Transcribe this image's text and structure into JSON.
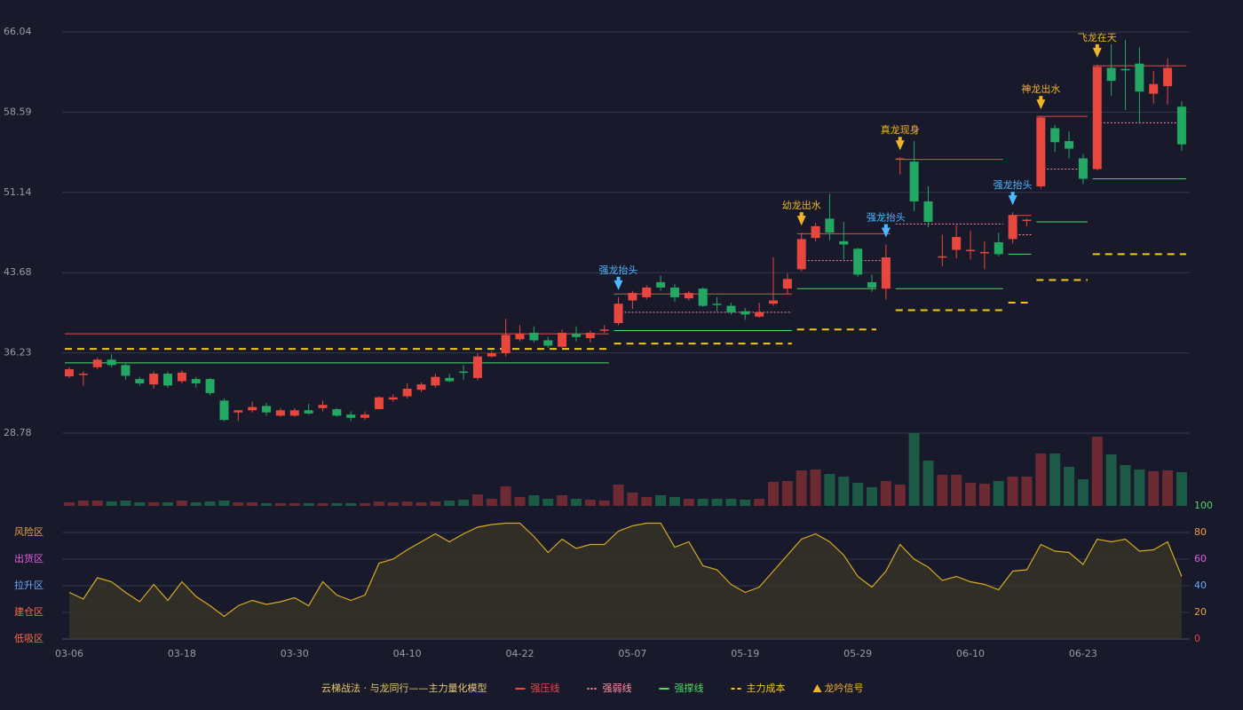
{
  "chart_data": [
    {
      "type": "candlestick",
      "categories": [
        "03-06",
        null,
        null,
        null,
        null,
        null,
        null,
        null,
        "03-18",
        null,
        null,
        null,
        null,
        null,
        null,
        null,
        "03-30",
        null,
        null,
        null,
        null,
        null,
        null,
        null,
        "04-10",
        null,
        null,
        null,
        null,
        null,
        null,
        null,
        "04-22",
        null,
        null,
        null,
        null,
        null,
        null,
        null,
        "05-07",
        null,
        null,
        null,
        null,
        null,
        null,
        null,
        "05-19",
        null,
        null,
        null,
        null,
        null,
        null,
        null,
        "05-29",
        null,
        null,
        null,
        null,
        null,
        null,
        null,
        "06-10",
        null,
        null,
        null,
        null,
        null,
        null,
        null,
        "06-23",
        null,
        null,
        null,
        null,
        null,
        null,
        null
      ],
      "open": [
        34.05,
        34.2,
        34.9,
        35.6,
        35.1,
        33.8,
        33.3,
        34.3,
        33.6,
        33.8,
        33.8,
        31.8,
        30.7,
        30.9,
        31.3,
        30.4,
        30.4,
        30.9,
        31.1,
        31.0,
        30.5,
        30.2,
        31.0,
        31.9,
        32.2,
        32.8,
        33.2,
        33.9,
        34.5,
        33.9,
        35.9,
        36.2,
        37.5,
        38.1,
        37.4,
        36.8,
        38.0,
        37.6,
        38.3,
        39.0,
        41.1,
        41.4,
        42.8,
        42.3,
        41.3,
        42.2,
        40.8,
        40.6,
        40.1,
        39.6,
        40.8,
        42.2,
        44.0,
        46.9,
        48.7,
        46.6,
        45.9,
        42.8,
        42.2,
        54.2,
        54.0,
        50.3,
        45.1,
        45.8,
        45.7,
        45.5,
        46.5,
        46.8,
        48.5,
        51.7,
        57.1,
        55.9,
        54.3,
        53.3,
        62.7,
        62.6,
        63.1,
        60.3,
        61.0,
        59.1
      ],
      "close": [
        34.71,
        34.3,
        35.6,
        35.1,
        34.1,
        33.4,
        34.3,
        33.2,
        34.4,
        33.4,
        32.5,
        30.0,
        30.9,
        31.2,
        30.7,
        30.9,
        30.9,
        30.6,
        31.4,
        30.4,
        30.2,
        30.5,
        32.1,
        32.1,
        32.9,
        33.3,
        34.0,
        33.6,
        34.4,
        35.9,
        36.2,
        37.9,
        38.0,
        37.4,
        36.9,
        38.1,
        37.7,
        38.1,
        38.4,
        40.8,
        41.8,
        42.3,
        42.3,
        41.4,
        41.8,
        40.6,
        40.7,
        40.0,
        39.8,
        40.0,
        41.1,
        43.1,
        46.8,
        48.0,
        47.4,
        46.3,
        43.5,
        42.3,
        45.1,
        54.3,
        50.3,
        48.4,
        45.2,
        47.0,
        45.8,
        45.6,
        45.4,
        49.0,
        48.6,
        58.1,
        55.8,
        55.2,
        52.4,
        62.8,
        61.5,
        62.5,
        60.5,
        61.2,
        62.7,
        55.6
      ],
      "high": [
        34.9,
        34.5,
        35.8,
        36.1,
        35.3,
        34.0,
        34.5,
        34.5,
        34.6,
        34.0,
        33.9,
        32.0,
        30.9,
        31.7,
        31.6,
        31.1,
        31.1,
        31.5,
        31.8,
        31.1,
        30.8,
        30.8,
        32.2,
        32.4,
        33.4,
        33.5,
        34.3,
        34.3,
        35.1,
        36.2,
        36.4,
        39.4,
        38.8,
        38.7,
        37.7,
        38.4,
        38.7,
        38.3,
        38.8,
        41.4,
        42.0,
        42.5,
        43.4,
        42.6,
        42.0,
        42.3,
        41.4,
        40.9,
        40.4,
        40.9,
        45.1,
        43.6,
        47.4,
        48.3,
        51.0,
        48.4,
        46.0,
        43.5,
        46.3,
        54.4,
        55.9,
        51.7,
        47.2,
        48.1,
        47.6,
        46.6,
        47.4,
        49.3,
        48.7,
        58.2,
        57.4,
        56.8,
        54.7,
        63.0,
        64.9,
        65.3,
        64.6,
        62.4,
        63.6,
        59.6
      ],
      "low": [
        33.9,
        33.2,
        34.7,
        34.9,
        33.7,
        33.2,
        32.9,
        33.0,
        33.4,
        33.0,
        32.3,
        29.9,
        29.9,
        30.7,
        30.4,
        30.3,
        30.3,
        30.5,
        30.8,
        30.3,
        29.9,
        30.0,
        31.0,
        31.7,
        32.0,
        32.6,
        33.0,
        33.5,
        33.7,
        33.7,
        35.8,
        35.9,
        37.3,
        37.2,
        36.7,
        36.7,
        37.3,
        37.2,
        38.1,
        38.8,
        40.3,
        41.2,
        42.0,
        41.0,
        41.1,
        40.5,
        40.1,
        39.8,
        39.3,
        39.5,
        40.6,
        41.7,
        43.8,
        46.6,
        46.7,
        44.9,
        43.3,
        41.9,
        41.2,
        52.8,
        49.4,
        47.9,
        44.3,
        45.0,
        44.9,
        44.0,
        45.2,
        46.4,
        48.0,
        51.5,
        54.9,
        54.3,
        51.9,
        53.2,
        60.1,
        58.8,
        57.5,
        59.4,
        59.3,
        55.0
      ],
      "ylim": [
        28.78,
        66.04
      ],
      "yticks": [
        66.04,
        58.59,
        51.14,
        43.68,
        36.23,
        28.78
      ],
      "up_color": "#e8473d",
      "down_color": "#22a862",
      "levels": [
        {
          "name": "强压线",
          "color": "#e84a4a",
          "style": "solid",
          "segments": [
            {
              "from": 0,
              "to": 38,
              "value": 38.0
            },
            {
              "from": 39,
              "to": 51,
              "value": 41.7
            },
            {
              "from": 52,
              "to": 58,
              "value": 47.3
            },
            {
              "from": 59,
              "to": 66,
              "value": 54.2
            },
            {
              "from": 67,
              "to": 68,
              "value": 49.0
            },
            {
              "from": 69,
              "to": 72,
              "value": 58.2
            },
            {
              "from": 73,
              "to": 79,
              "value": 62.9
            }
          ]
        },
        {
          "name": "强弱线",
          "color": "#ff8fa3",
          "style": "dotted",
          "segments": [
            {
              "from": 39,
              "to": 51,
              "value": 40.0
            },
            {
              "from": 52,
              "to": 58,
              "value": 44.8
            },
            {
              "from": 59,
              "to": 66,
              "value": 48.2
            },
            {
              "from": 67,
              "to": 68,
              "value": 47.2
            },
            {
              "from": 69,
              "to": 72,
              "value": 53.3
            },
            {
              "from": 73,
              "to": 79,
              "value": 57.6
            }
          ]
        },
        {
          "name": "强撑线",
          "color": "#4cd964",
          "style": "solid",
          "segments": [
            {
              "from": 0,
              "to": 38,
              "value": 35.3
            },
            {
              "from": 39,
              "to": 51,
              "value": 38.3
            },
            {
              "from": 52,
              "to": 57,
              "value": 42.2
            },
            {
              "from": 59,
              "to": 66,
              "value": 42.2
            },
            {
              "from": 67,
              "to": 68,
              "value": 45.4
            },
            {
              "from": 69,
              "to": 72,
              "value": 48.4
            },
            {
              "from": 73,
              "to": 79,
              "value": 52.4
            }
          ]
        },
        {
          "name": "主力成本",
          "color": "#f5c518",
          "style": "dashed",
          "segments": [
            {
              "from": 0,
              "to": 38,
              "value": 36.6
            },
            {
              "from": 39,
              "to": 51,
              "value": 37.1
            },
            {
              "from": 52,
              "to": 57,
              "value": 38.4
            },
            {
              "from": 59,
              "to": 66,
              "value": 40.2
            },
            {
              "from": 67,
              "to": 68,
              "value": 40.9
            },
            {
              "from": 69,
              "to": 72,
              "value": 43.0
            },
            {
              "from": 73,
              "to": 79,
              "value": 45.4
            }
          ]
        }
      ],
      "signal_name": "龙吟信号",
      "signal_color": "#f0b429",
      "signals": [
        {
          "label": "强龙抬头",
          "index": 39,
          "color": "#4db8ff"
        },
        {
          "label": "幼龙出水",
          "index": 52,
          "color": "#f0b429"
        },
        {
          "label": "强龙抬头",
          "index": 58,
          "color": "#4db8ff"
        },
        {
          "label": "真龙现身",
          "index": 59,
          "color": "#f0b429"
        },
        {
          "label": "强龙抬头",
          "index": 67,
          "color": "#4db8ff"
        },
        {
          "label": "神龙出水",
          "index": 69,
          "color": "#f0b429"
        },
        {
          "label": "飞龙在天",
          "index": 73,
          "color": "#f0b429"
        }
      ],
      "legend_title": "云梯战法 · 与龙同行——主力量化模型"
    },
    {
      "type": "bar",
      "values": [
        4,
        6,
        6,
        5,
        6,
        4,
        4,
        4,
        6,
        4,
        5,
        6,
        4,
        4,
        3,
        3,
        3,
        3,
        3,
        3,
        3,
        3,
        5,
        4,
        5,
        4,
        5,
        6,
        7,
        13,
        8,
        22,
        10,
        12,
        8,
        12,
        8,
        7,
        6,
        24,
        15,
        10,
        12,
        10,
        8,
        8,
        8,
        8,
        7,
        8,
        27,
        28,
        40,
        41,
        36,
        33,
        26,
        21,
        28,
        24,
        82,
        51,
        35,
        35,
        26,
        25,
        28,
        33,
        33,
        59,
        59,
        44,
        30,
        78,
        58,
        46,
        41,
        39,
        40,
        38
      ],
      "ylim": [
        0,
        82
      ],
      "up_color": "#6e2a33",
      "down_color": "#1c5a46"
    },
    {
      "type": "line",
      "values": [
        35,
        30,
        46,
        43,
        35,
        28,
        41,
        29,
        43,
        32,
        25,
        17,
        25,
        29,
        26,
        28,
        31,
        25,
        43,
        33,
        29,
        33,
        57,
        60,
        67,
        73,
        79,
        73,
        79,
        84,
        86,
        87,
        87,
        77,
        65,
        75,
        68,
        71,
        71,
        81,
        85,
        87,
        87,
        69,
        73,
        55,
        52,
        41,
        35,
        39,
        51,
        63,
        75,
        79,
        73,
        63,
        47,
        39,
        51,
        71,
        60,
        54,
        44,
        47,
        43,
        41,
        37,
        51,
        52,
        71,
        66,
        65,
        56,
        75,
        73,
        75,
        66,
        67,
        73,
        47
      ],
      "ylim": [
        0,
        100
      ],
      "y2ticks": [
        0,
        20,
        40,
        60,
        80,
        100
      ],
      "y2tick_colors": [
        "#e8473d",
        "#e8a040",
        "#6aa8ff",
        "#e060e0",
        "#e8a040",
        "#4cd964"
      ],
      "color": "#d4aa20",
      "zones": [
        {
          "label": "风险区",
          "color": "#e8a040"
        },
        {
          "label": "出货区",
          "color": "#e060e0"
        },
        {
          "label": "拉升区",
          "color": "#6aa8ff"
        },
        {
          "label": "建仓区",
          "color": "#ff6a4a"
        },
        {
          "label": "低吸区",
          "color": "#ff6a4a"
        }
      ]
    }
  ]
}
